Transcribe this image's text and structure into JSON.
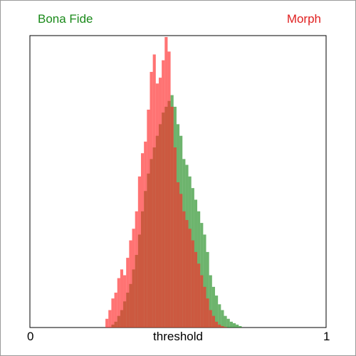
{
  "chart_data": {
    "type": "area",
    "xlabel": "threshold",
    "ylabel": "",
    "xlim": [
      0,
      1
    ],
    "x_tick_labels": [
      "0",
      "1"
    ],
    "grid": false,
    "legend_placement": "top",
    "series": [
      {
        "name": "Bona Fide",
        "color": "#1a8a1a",
        "fill": "rgba(30,140,30,0.65)",
        "x": [
          0.27,
          0.28,
          0.29,
          0.3,
          0.31,
          0.32,
          0.33,
          0.34,
          0.35,
          0.36,
          0.37,
          0.38,
          0.39,
          0.4,
          0.41,
          0.42,
          0.43,
          0.44,
          0.45,
          0.46,
          0.47,
          0.48,
          0.49,
          0.5,
          0.51,
          0.52,
          0.53,
          0.54,
          0.55,
          0.56,
          0.57,
          0.58,
          0.59,
          0.6,
          0.61,
          0.62,
          0.63,
          0.64,
          0.65,
          0.66,
          0.67,
          0.68,
          0.69,
          0.7,
          0.71,
          0.72
        ],
        "values": [
          0.0,
          0.01,
          0.02,
          0.04,
          0.06,
          0.09,
          0.12,
          0.15,
          0.2,
          0.25,
          0.32,
          0.4,
          0.47,
          0.53,
          0.58,
          0.62,
          0.66,
          0.7,
          0.74,
          0.76,
          0.78,
          0.8,
          0.76,
          0.7,
          0.66,
          0.58,
          0.56,
          0.52,
          0.48,
          0.44,
          0.4,
          0.36,
          0.32,
          0.26,
          0.18,
          0.14,
          0.11,
          0.08,
          0.06,
          0.04,
          0.03,
          0.02,
          0.015,
          0.01,
          0.005,
          0.0
        ]
      },
      {
        "name": "Morph",
        "color": "#e02020",
        "fill": "rgba(255,40,40,0.65)",
        "x": [
          0.25,
          0.26,
          0.27,
          0.28,
          0.29,
          0.3,
          0.31,
          0.32,
          0.33,
          0.34,
          0.35,
          0.36,
          0.37,
          0.38,
          0.39,
          0.4,
          0.41,
          0.42,
          0.43,
          0.44,
          0.45,
          0.46,
          0.47,
          0.48,
          0.49,
          0.5,
          0.51,
          0.52,
          0.53,
          0.54,
          0.55,
          0.56,
          0.57,
          0.58,
          0.59,
          0.6,
          0.61,
          0.62,
          0.63,
          0.64,
          0.65,
          0.66,
          0.67
        ],
        "values": [
          0.0,
          0.03,
          0.06,
          0.1,
          0.12,
          0.17,
          0.2,
          0.18,
          0.24,
          0.3,
          0.34,
          0.4,
          0.52,
          0.6,
          0.64,
          0.75,
          0.88,
          0.94,
          0.84,
          0.86,
          0.92,
          1.0,
          0.95,
          0.76,
          0.62,
          0.5,
          0.46,
          0.4,
          0.37,
          0.34,
          0.3,
          0.26,
          0.22,
          0.18,
          0.14,
          0.1,
          0.06,
          0.04,
          0.02,
          0.01,
          0.005,
          0.002,
          0.0
        ]
      }
    ]
  }
}
